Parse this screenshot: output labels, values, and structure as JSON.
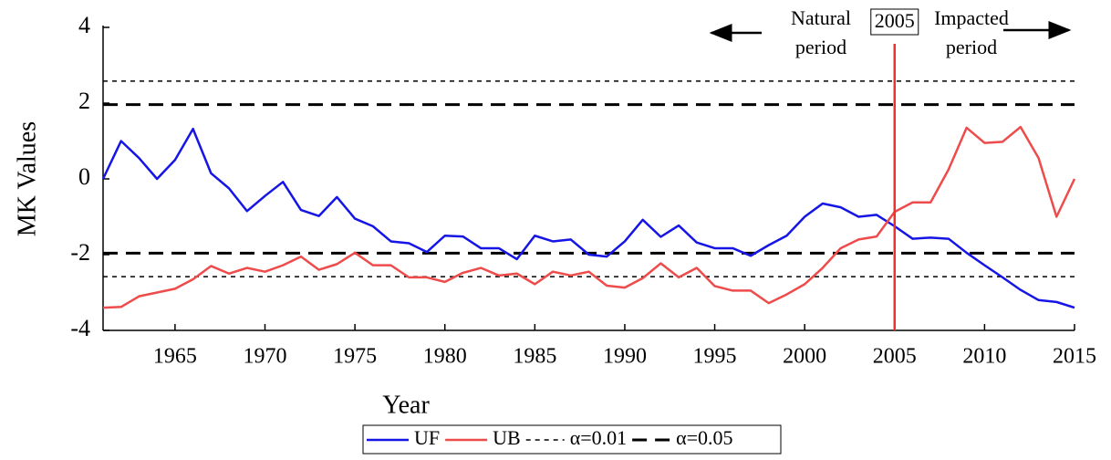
{
  "chart_data": {
    "type": "line",
    "x_label": "Year",
    "y_label": "MK Values",
    "x": [
      1961,
      1962,
      1963,
      1964,
      1965,
      1966,
      1967,
      1968,
      1969,
      1970,
      1971,
      1972,
      1973,
      1974,
      1975,
      1976,
      1977,
      1978,
      1979,
      1980,
      1981,
      1982,
      1983,
      1984,
      1985,
      1986,
      1987,
      1988,
      1989,
      1990,
      1991,
      1992,
      1993,
      1994,
      1995,
      1996,
      1997,
      1998,
      1999,
      2000,
      2001,
      2002,
      2003,
      2004,
      2005,
      2006,
      2007,
      2008,
      2009,
      2010,
      2011,
      2012,
      2013,
      2014,
      2015
    ],
    "series": [
      {
        "name": "UF",
        "color": "#1515e6",
        "values": [
          0,
          1.0,
          0.55,
          0,
          0.5,
          1.32,
          0.15,
          -0.25,
          -0.85,
          -0.45,
          -0.08,
          -0.82,
          -0.98,
          -0.48,
          -1.05,
          -1.25,
          -1.65,
          -1.7,
          -1.93,
          -1.5,
          -1.52,
          -1.83,
          -1.83,
          -2.12,
          -1.5,
          -1.65,
          -1.6,
          -2.0,
          -2.05,
          -1.65,
          -1.08,
          -1.53,
          -1.23,
          -1.68,
          -1.83,
          -1.83,
          -2.03,
          -1.75,
          -1.5,
          -1.0,
          -0.65,
          -0.75,
          -1.0,
          -0.95,
          -1.25,
          -1.58,
          -1.55,
          -1.58,
          -1.95,
          -2.28,
          -2.6,
          -2.93,
          -3.2,
          -3.25,
          -3.4
        ]
      },
      {
        "name": "UB",
        "color": "#ee4b4b",
        "values": [
          -3.4,
          -3.38,
          -3.1,
          -3.0,
          -2.9,
          -2.65,
          -2.3,
          -2.5,
          -2.35,
          -2.45,
          -2.28,
          -2.05,
          -2.4,
          -2.25,
          -1.95,
          -2.28,
          -2.28,
          -2.6,
          -2.6,
          -2.72,
          -2.48,
          -2.35,
          -2.55,
          -2.5,
          -2.78,
          -2.45,
          -2.55,
          -2.45,
          -2.82,
          -2.87,
          -2.62,
          -2.23,
          -2.6,
          -2.35,
          -2.83,
          -2.95,
          -2.95,
          -3.28,
          -3.05,
          -2.78,
          -2.35,
          -1.83,
          -1.6,
          -1.52,
          -0.87,
          -0.62,
          -0.62,
          0.25,
          1.35,
          0.95,
          0.98,
          1.37,
          0.55,
          -1.0,
          0.0
        ]
      }
    ],
    "reference_lines": [
      {
        "name": "α=0.01",
        "color": "#000000",
        "style": "short-dash",
        "values": [
          2.58,
          -2.58
        ]
      },
      {
        "name": "α=0.05",
        "color": "#000000",
        "style": "long-dash",
        "values": [
          1.96,
          -1.96
        ]
      }
    ],
    "vline": {
      "x": 2005,
      "color": "#ee3030",
      "label": "2005"
    },
    "annotations": {
      "left": [
        "Natural",
        "period"
      ],
      "right": [
        "Impacted",
        "period"
      ]
    },
    "xlim": [
      1961,
      2015
    ],
    "xticks": [
      1965,
      1970,
      1975,
      1980,
      1985,
      1990,
      1995,
      2000,
      2005,
      2010,
      2015
    ],
    "ylim": [
      -4,
      4
    ],
    "yticks": [
      -4,
      -2,
      0,
      2,
      4
    ]
  }
}
